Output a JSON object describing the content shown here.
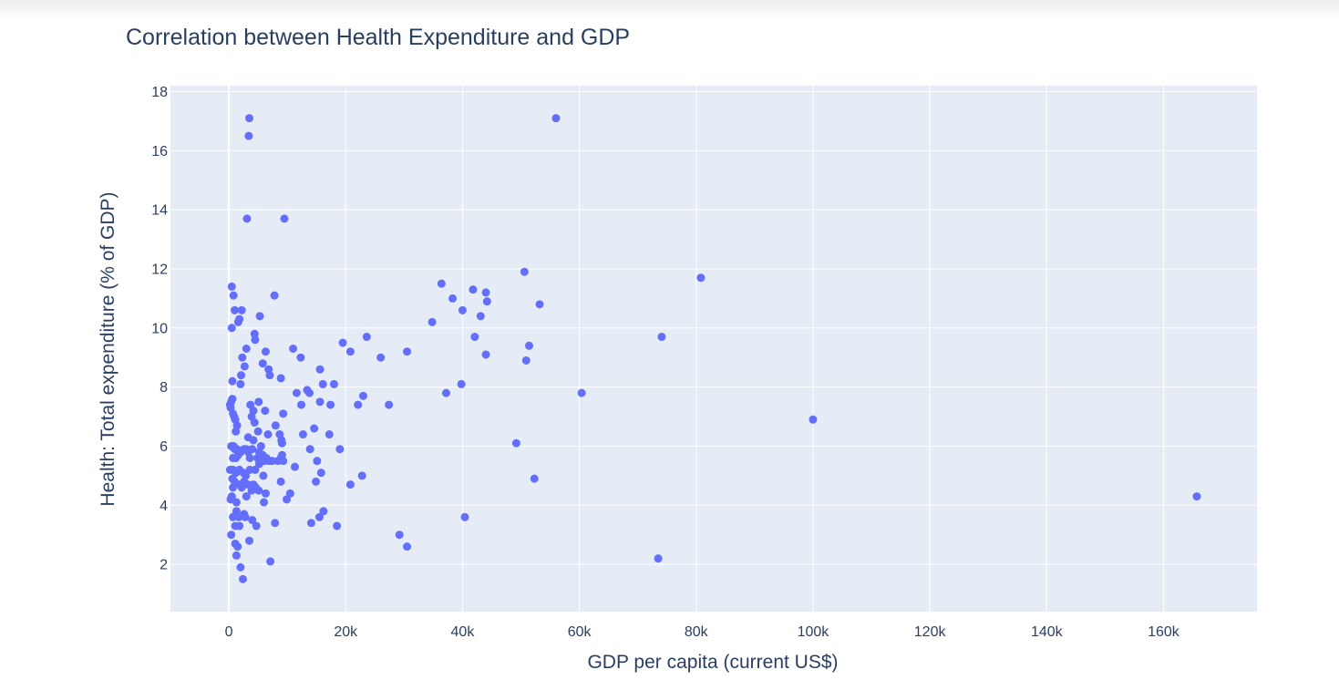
{
  "chart_data": {
    "type": "scatter",
    "title": "Correlation between Health Expenditure and GDP",
    "xlabel": "GDP per capita (current US$)",
    "ylabel": "Health: Total expenditure (% of GDP)",
    "xlim": [
      -10000,
      176000
    ],
    "ylim": [
      0.4,
      18.2
    ],
    "x_ticks": [
      0,
      20000,
      40000,
      60000,
      80000,
      100000,
      120000,
      140000,
      160000
    ],
    "x_tick_labels": [
      "0",
      "20k",
      "40k",
      "60k",
      "80k",
      "100k",
      "120k",
      "140k",
      "160k"
    ],
    "y_ticks": [
      2,
      4,
      6,
      8,
      10,
      12,
      14,
      16,
      18
    ],
    "y_tick_labels": [
      "2",
      "4",
      "6",
      "8",
      "10",
      "12",
      "14",
      "16",
      "18"
    ],
    "grid": true,
    "colors": {
      "marker": "#636efa",
      "plot_bg": "#e5ecf6",
      "grid": "#ffffff",
      "text": "#2a3f5f"
    },
    "series": [
      {
        "points": [
          [
            3500,
            17.1
          ],
          [
            3400,
            16.5
          ],
          [
            56000,
            17.1
          ],
          [
            3100,
            13.7
          ],
          [
            9500,
            13.7
          ],
          [
            500,
            11.4
          ],
          [
            800,
            11.1
          ],
          [
            7800,
            11.1
          ],
          [
            1000,
            10.6
          ],
          [
            2200,
            10.6
          ],
          [
            1800,
            10.3
          ],
          [
            1600,
            10.2
          ],
          [
            5300,
            10.4
          ],
          [
            500,
            10.0
          ],
          [
            4400,
            9.8
          ],
          [
            4500,
            9.6
          ],
          [
            3000,
            9.3
          ],
          [
            6300,
            9.2
          ],
          [
            2300,
            9.0
          ],
          [
            5800,
            8.8
          ],
          [
            2700,
            8.7
          ],
          [
            6800,
            8.6
          ],
          [
            7000,
            8.4
          ],
          [
            2100,
            8.4
          ],
          [
            8900,
            8.3
          ],
          [
            600,
            8.2
          ],
          [
            2000,
            8.1
          ],
          [
            200,
            7.4
          ],
          [
            600,
            7.6
          ],
          [
            400,
            7.5
          ],
          [
            300,
            7.3
          ],
          [
            700,
            7.1
          ],
          [
            900,
            7.0
          ],
          [
            1100,
            6.9
          ],
          [
            1400,
            6.7
          ],
          [
            1200,
            6.5
          ],
          [
            3700,
            7.4
          ],
          [
            5100,
            7.5
          ],
          [
            4200,
            7.2
          ],
          [
            6200,
            7.2
          ],
          [
            3900,
            7.0
          ],
          [
            4400,
            6.8
          ],
          [
            8000,
            6.7
          ],
          [
            9300,
            7.1
          ],
          [
            5000,
            6.5
          ],
          [
            6700,
            6.4
          ],
          [
            3300,
            6.3
          ],
          [
            9000,
            6.2
          ],
          [
            4200,
            6.2
          ],
          [
            8700,
            6.4
          ],
          [
            9100,
            6.1
          ],
          [
            800,
            6.0
          ],
          [
            400,
            6.0
          ],
          [
            1000,
            5.9
          ],
          [
            1400,
            5.9
          ],
          [
            2000,
            5.8
          ],
          [
            2600,
            5.9
          ],
          [
            3000,
            5.9
          ],
          [
            3300,
            5.8
          ],
          [
            4000,
            5.9
          ],
          [
            5200,
            5.8
          ],
          [
            5500,
            6.0
          ],
          [
            5800,
            5.7
          ],
          [
            6400,
            5.6
          ],
          [
            9100,
            5.7
          ],
          [
            8900,
            5.6
          ],
          [
            700,
            5.6
          ],
          [
            1200,
            5.6
          ],
          [
            1600,
            5.7
          ],
          [
            3600,
            5.6
          ],
          [
            4900,
            5.6
          ],
          [
            6100,
            5.5
          ],
          [
            6900,
            5.5
          ],
          [
            7400,
            5.5
          ],
          [
            8400,
            5.5
          ],
          [
            9300,
            5.5
          ],
          [
            5200,
            5.4
          ],
          [
            200,
            5.2
          ],
          [
            700,
            5.2
          ],
          [
            1200,
            5.1
          ],
          [
            1800,
            5.2
          ],
          [
            2500,
            5.1
          ],
          [
            3600,
            5.2
          ],
          [
            4500,
            5.2
          ],
          [
            5900,
            5.0
          ],
          [
            600,
            4.9
          ],
          [
            1000,
            4.8
          ],
          [
            2900,
            5.0
          ],
          [
            1800,
            4.7
          ],
          [
            2600,
            4.8
          ],
          [
            3300,
            4.7
          ],
          [
            4200,
            4.7
          ],
          [
            4600,
            4.6
          ],
          [
            3900,
            4.5
          ],
          [
            5100,
            4.5
          ],
          [
            700,
            4.6
          ],
          [
            2200,
            4.6
          ],
          [
            3000,
            4.3
          ],
          [
            6300,
            4.4
          ],
          [
            8900,
            4.8
          ],
          [
            500,
            4.3
          ],
          [
            300,
            4.2
          ],
          [
            1300,
            4.1
          ],
          [
            6000,
            4.1
          ],
          [
            9900,
            4.2
          ],
          [
            10500,
            4.4
          ],
          [
            1300,
            3.8
          ],
          [
            700,
            3.6
          ],
          [
            1700,
            3.6
          ],
          [
            2600,
            3.7
          ],
          [
            2800,
            3.6
          ],
          [
            4000,
            3.5
          ],
          [
            1100,
            3.3
          ],
          [
            1800,
            3.3
          ],
          [
            4700,
            3.3
          ],
          [
            7900,
            3.4
          ],
          [
            400,
            3.0
          ],
          [
            1100,
            2.7
          ],
          [
            1500,
            2.6
          ],
          [
            3500,
            2.8
          ],
          [
            1300,
            2.3
          ],
          [
            2000,
            1.9
          ],
          [
            2400,
            1.5
          ],
          [
            7100,
            2.1
          ],
          [
            11000,
            9.3
          ],
          [
            12300,
            9.0
          ],
          [
            11600,
            7.8
          ],
          [
            12400,
            7.4
          ],
          [
            13400,
            7.9
          ],
          [
            13800,
            7.8
          ],
          [
            15600,
            8.6
          ],
          [
            16100,
            8.1
          ],
          [
            15600,
            7.5
          ],
          [
            17400,
            7.4
          ],
          [
            18000,
            8.1
          ],
          [
            14600,
            6.6
          ],
          [
            12700,
            6.4
          ],
          [
            17200,
            6.4
          ],
          [
            13900,
            5.9
          ],
          [
            19000,
            5.9
          ],
          [
            15100,
            5.5
          ],
          [
            15800,
            5.1
          ],
          [
            11300,
            5.3
          ],
          [
            14900,
            4.8
          ],
          [
            16200,
            3.8
          ],
          [
            15500,
            3.6
          ],
          [
            14100,
            3.4
          ],
          [
            18500,
            3.3
          ],
          [
            19500,
            9.5
          ],
          [
            20800,
            9.2
          ],
          [
            23600,
            9.7
          ],
          [
            26000,
            9.0
          ],
          [
            30500,
            9.2
          ],
          [
            23000,
            7.7
          ],
          [
            22100,
            7.4
          ],
          [
            27400,
            7.4
          ],
          [
            20800,
            4.7
          ],
          [
            22800,
            5.0
          ],
          [
            29200,
            3.0
          ],
          [
            30500,
            2.6
          ],
          [
            34800,
            10.2
          ],
          [
            36400,
            11.5
          ],
          [
            38300,
            11.0
          ],
          [
            40000,
            10.6
          ],
          [
            41800,
            11.3
          ],
          [
            43100,
            10.4
          ],
          [
            44000,
            11.2
          ],
          [
            44200,
            10.9
          ],
          [
            42100,
            9.7
          ],
          [
            44000,
            9.1
          ],
          [
            37200,
            7.8
          ],
          [
            39800,
            8.1
          ],
          [
            40400,
            3.6
          ],
          [
            50600,
            11.9
          ],
          [
            53200,
            10.8
          ],
          [
            51400,
            9.4
          ],
          [
            50900,
            8.9
          ],
          [
            49200,
            6.1
          ],
          [
            52300,
            4.9
          ],
          [
            60400,
            7.8
          ],
          [
            73500,
            2.2
          ],
          [
            74100,
            9.7
          ],
          [
            80800,
            11.7
          ],
          [
            100000,
            6.9
          ],
          [
            165700,
            4.3
          ]
        ]
      }
    ]
  }
}
